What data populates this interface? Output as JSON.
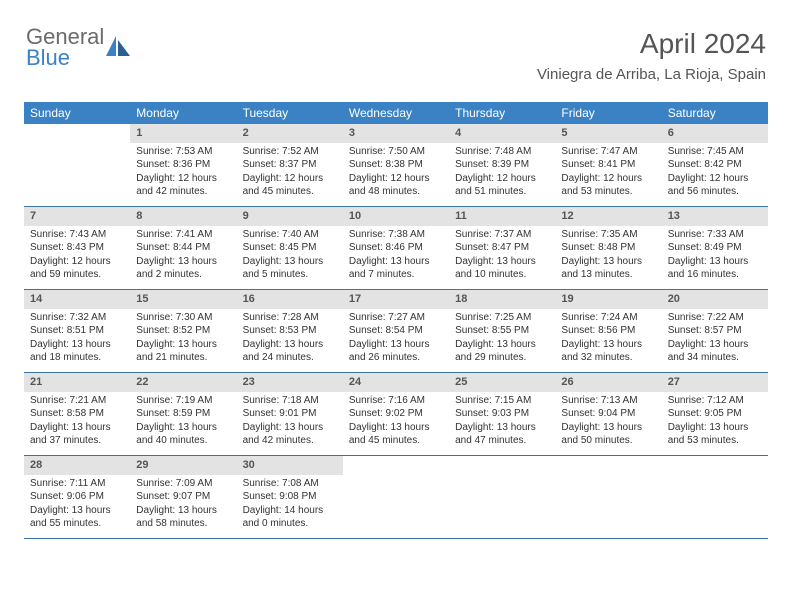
{
  "logo": {
    "text1": "General",
    "text2": "Blue"
  },
  "header": {
    "month_title": "April 2024",
    "location": "Viniegra de Arriba, La Rioja, Spain"
  },
  "colors": {
    "header_bg": "#3b82c4",
    "header_text": "#ffffff",
    "daynum_bg": "#e3e3e3",
    "daynum_text": "#555555",
    "week_border": "#3b72a8",
    "body_text": "#333333",
    "logo_gray": "#6b6b6b",
    "logo_blue": "#3b82c4"
  },
  "typography": {
    "month_title_fontsize": 28,
    "location_fontsize": 15,
    "day_header_fontsize": 12,
    "cell_fontsize": 10,
    "daynum_fontsize": 11
  },
  "day_names": [
    "Sunday",
    "Monday",
    "Tuesday",
    "Wednesday",
    "Thursday",
    "Friday",
    "Saturday"
  ],
  "weeks": [
    [
      {
        "empty": true
      },
      {
        "num": "1",
        "sunrise": "7:53 AM",
        "sunset": "8:36 PM",
        "day_h": "12",
        "day_m": "42"
      },
      {
        "num": "2",
        "sunrise": "7:52 AM",
        "sunset": "8:37 PM",
        "day_h": "12",
        "day_m": "45"
      },
      {
        "num": "3",
        "sunrise": "7:50 AM",
        "sunset": "8:38 PM",
        "day_h": "12",
        "day_m": "48"
      },
      {
        "num": "4",
        "sunrise": "7:48 AM",
        "sunset": "8:39 PM",
        "day_h": "12",
        "day_m": "51"
      },
      {
        "num": "5",
        "sunrise": "7:47 AM",
        "sunset": "8:41 PM",
        "day_h": "12",
        "day_m": "53"
      },
      {
        "num": "6",
        "sunrise": "7:45 AM",
        "sunset": "8:42 PM",
        "day_h": "12",
        "day_m": "56"
      }
    ],
    [
      {
        "num": "7",
        "sunrise": "7:43 AM",
        "sunset": "8:43 PM",
        "day_h": "12",
        "day_m": "59"
      },
      {
        "num": "8",
        "sunrise": "7:41 AM",
        "sunset": "8:44 PM",
        "day_h": "13",
        "day_m": "2"
      },
      {
        "num": "9",
        "sunrise": "7:40 AM",
        "sunset": "8:45 PM",
        "day_h": "13",
        "day_m": "5"
      },
      {
        "num": "10",
        "sunrise": "7:38 AM",
        "sunset": "8:46 PM",
        "day_h": "13",
        "day_m": "7"
      },
      {
        "num": "11",
        "sunrise": "7:37 AM",
        "sunset": "8:47 PM",
        "day_h": "13",
        "day_m": "10"
      },
      {
        "num": "12",
        "sunrise": "7:35 AM",
        "sunset": "8:48 PM",
        "day_h": "13",
        "day_m": "13"
      },
      {
        "num": "13",
        "sunrise": "7:33 AM",
        "sunset": "8:49 PM",
        "day_h": "13",
        "day_m": "16"
      }
    ],
    [
      {
        "num": "14",
        "sunrise": "7:32 AM",
        "sunset": "8:51 PM",
        "day_h": "13",
        "day_m": "18"
      },
      {
        "num": "15",
        "sunrise": "7:30 AM",
        "sunset": "8:52 PM",
        "day_h": "13",
        "day_m": "21"
      },
      {
        "num": "16",
        "sunrise": "7:28 AM",
        "sunset": "8:53 PM",
        "day_h": "13",
        "day_m": "24"
      },
      {
        "num": "17",
        "sunrise": "7:27 AM",
        "sunset": "8:54 PM",
        "day_h": "13",
        "day_m": "26"
      },
      {
        "num": "18",
        "sunrise": "7:25 AM",
        "sunset": "8:55 PM",
        "day_h": "13",
        "day_m": "29"
      },
      {
        "num": "19",
        "sunrise": "7:24 AM",
        "sunset": "8:56 PM",
        "day_h": "13",
        "day_m": "32"
      },
      {
        "num": "20",
        "sunrise": "7:22 AM",
        "sunset": "8:57 PM",
        "day_h": "13",
        "day_m": "34"
      }
    ],
    [
      {
        "num": "21",
        "sunrise": "7:21 AM",
        "sunset": "8:58 PM",
        "day_h": "13",
        "day_m": "37"
      },
      {
        "num": "22",
        "sunrise": "7:19 AM",
        "sunset": "8:59 PM",
        "day_h": "13",
        "day_m": "40"
      },
      {
        "num": "23",
        "sunrise": "7:18 AM",
        "sunset": "9:01 PM",
        "day_h": "13",
        "day_m": "42"
      },
      {
        "num": "24",
        "sunrise": "7:16 AM",
        "sunset": "9:02 PM",
        "day_h": "13",
        "day_m": "45"
      },
      {
        "num": "25",
        "sunrise": "7:15 AM",
        "sunset": "9:03 PM",
        "day_h": "13",
        "day_m": "47"
      },
      {
        "num": "26",
        "sunrise": "7:13 AM",
        "sunset": "9:04 PM",
        "day_h": "13",
        "day_m": "50"
      },
      {
        "num": "27",
        "sunrise": "7:12 AM",
        "sunset": "9:05 PM",
        "day_h": "13",
        "day_m": "53"
      }
    ],
    [
      {
        "num": "28",
        "sunrise": "7:11 AM",
        "sunset": "9:06 PM",
        "day_h": "13",
        "day_m": "55"
      },
      {
        "num": "29",
        "sunrise": "7:09 AM",
        "sunset": "9:07 PM",
        "day_h": "13",
        "day_m": "58"
      },
      {
        "num": "30",
        "sunrise": "7:08 AM",
        "sunset": "9:08 PM",
        "day_h": "14",
        "day_m": "0"
      },
      {
        "empty": true
      },
      {
        "empty": true
      },
      {
        "empty": true
      },
      {
        "empty": true
      }
    ]
  ]
}
